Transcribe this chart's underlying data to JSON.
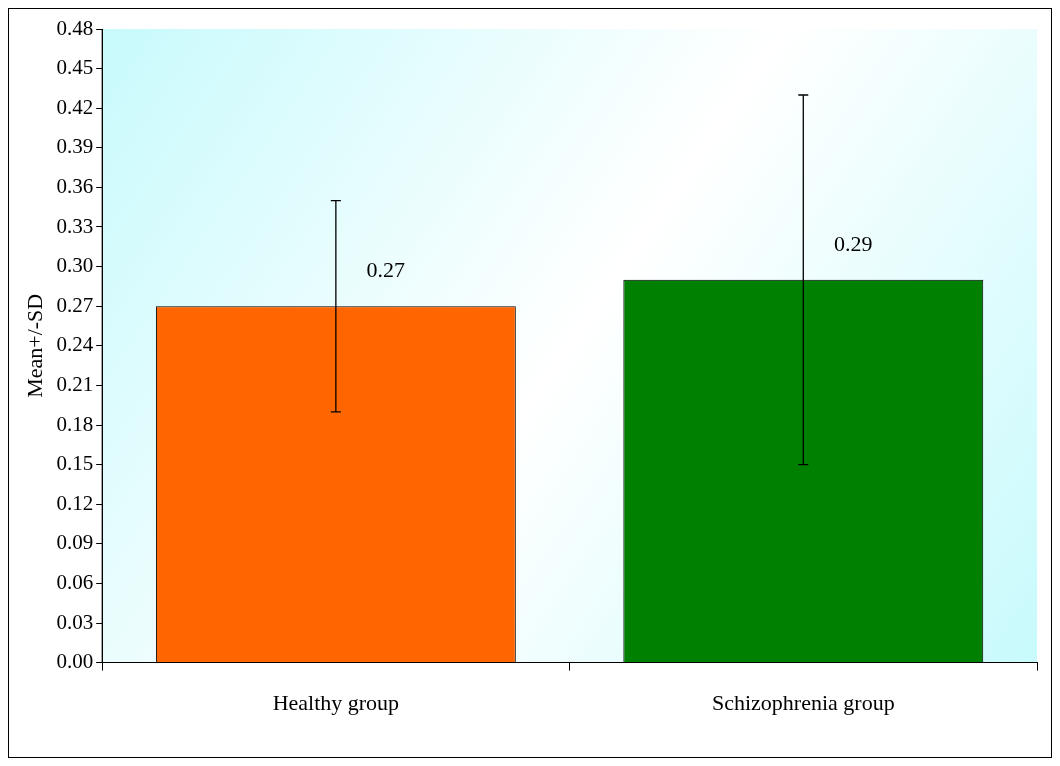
{
  "chart_data": {
    "type": "bar",
    "ylabel": "Mean+/-SD",
    "categories": [
      "Healthy group",
      "Schizophrenia group"
    ],
    "values": [
      0.27,
      0.29
    ],
    "colors": [
      "#ff6600",
      "#008000"
    ],
    "errors": [
      0.08,
      0.14
    ],
    "data_labels": true,
    "ylim": [
      0,
      0.48
    ],
    "yticks": [
      {
        "value": 0,
        "label": "0.00"
      },
      {
        "value": 0.03,
        "label": "0.03"
      },
      {
        "value": 0.06,
        "label": "0.06"
      },
      {
        "value": 0.09,
        "label": "0.09"
      },
      {
        "value": 0.12,
        "label": "0.12"
      },
      {
        "value": 0.15,
        "label": "0.15"
      },
      {
        "value": 0.18,
        "label": "0.18"
      },
      {
        "value": 0.21,
        "label": "0.21"
      },
      {
        "value": 0.24,
        "label": "0.24"
      },
      {
        "value": 0.27,
        "label": "0.27"
      },
      {
        "value": 0.3,
        "label": "0.30"
      },
      {
        "value": 0.33,
        "label": "0.33"
      },
      {
        "value": 0.36,
        "label": "0.36"
      },
      {
        "value": 0.39,
        "label": "0.39"
      },
      {
        "value": 0.42,
        "label": "0.42"
      },
      {
        "value": 0.45,
        "label": "0.45"
      },
      {
        "value": 0.48,
        "label": "0.48"
      }
    ],
    "grid": false,
    "legend": false
  }
}
